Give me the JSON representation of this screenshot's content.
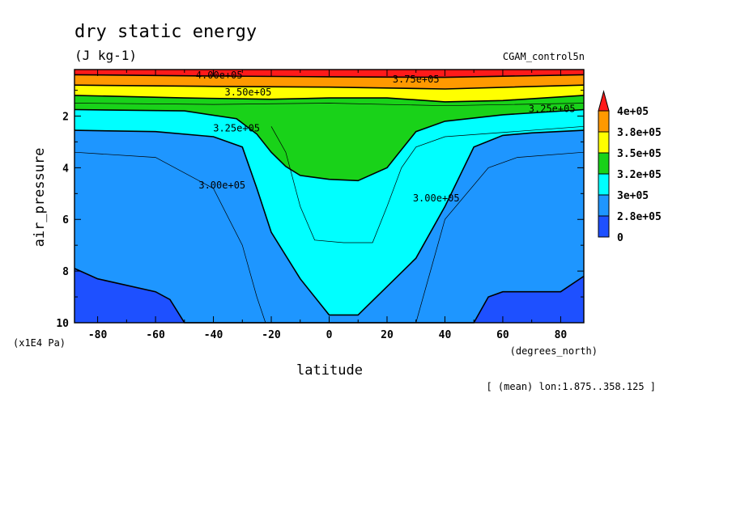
{
  "chart_data": {
    "type": "contour",
    "title": "dry static energy",
    "units_label": "(J kg-1)",
    "run_label": "CGAM_control5n",
    "xlabel": "latitude",
    "ylabel": "air_pressure",
    "x_units": "(degrees_north)",
    "y_units": "(x1E4 Pa)",
    "mean_note": "[ (mean) lon:1.875..358.125 ]",
    "xlim": [
      -88,
      88
    ],
    "ylim_reversed": [
      10,
      0.2
    ],
    "x_ticks": [
      "-80",
      "-60",
      "-40",
      "-20",
      "0",
      "20",
      "40",
      "60",
      "80"
    ],
    "x_tick_values": [
      -80,
      -60,
      -40,
      -20,
      0,
      20,
      40,
      60,
      80
    ],
    "y_ticks": [
      "2",
      "4",
      "6",
      "8",
      "10"
    ],
    "y_tick_values": [
      2,
      4,
      6,
      8,
      10
    ],
    "colorbar": {
      "labels": [
        "4e+05",
        "3.8e+05",
        "3.5e+05",
        "3.2e+05",
        "3e+05",
        "2.8e+05",
        "0"
      ],
      "colors": [
        "#ff1a1a",
        "#ff9900",
        "#ffff00",
        "#19d219",
        "#00ffff",
        "#1e96ff",
        "#1e50ff"
      ]
    },
    "contour_labels": [
      {
        "text": "4.00e+05",
        "lat": -38,
        "p": 0.55
      },
      {
        "text": "3.75e+05",
        "lat": 30,
        "p": 0.7
      },
      {
        "text": "3.50e+05",
        "lat": -28,
        "p": 1.2
      },
      {
        "text": "3.25e+05",
        "lat": 77,
        "p": 1.85
      },
      {
        "text": "3.25e+05",
        "lat": -32,
        "p": 2.6
      },
      {
        "text": "3.00e+05",
        "lat": -37,
        "p": 4.8
      },
      {
        "text": "3.00e+05",
        "lat": 37,
        "p": 5.3
      }
    ],
    "regions": [
      {
        "name": "2.8e+05-3e+05",
        "color": "#1e96ff",
        "top": [
          [
            -88,
            2.55
          ],
          [
            -60,
            2.6
          ],
          [
            -40,
            2.8
          ],
          [
            -30,
            3.2
          ],
          [
            -25,
            4.8
          ],
          [
            -20,
            6.5
          ],
          [
            -10,
            8.3
          ],
          [
            0,
            9.7
          ],
          [
            10,
            9.7
          ],
          [
            20,
            8.6
          ],
          [
            30,
            7.5
          ],
          [
            40,
            5.5
          ],
          [
            50,
            3.2
          ],
          [
            60,
            2.75
          ],
          [
            70,
            2.65
          ],
          [
            88,
            2.55
          ]
        ],
        "bottom": [
          [
            -88,
            7.9
          ],
          [
            -80,
            8.3
          ],
          [
            -60,
            8.8
          ],
          [
            -55,
            9.1
          ],
          [
            -50,
            10.0
          ],
          [
            50,
            10.0
          ],
          [
            55,
            9.0
          ],
          [
            60,
            8.8
          ],
          [
            80,
            8.8
          ],
          [
            88,
            8.2
          ]
        ]
      },
      {
        "name": "3e+05-3.2e+05",
        "color": "#00ffff",
        "top": [
          [
            -88,
            1.75
          ],
          [
            -50,
            1.8
          ],
          [
            -32,
            2.1
          ],
          [
            -25,
            2.7
          ],
          [
            -20,
            3.4
          ],
          [
            -15,
            3.95
          ],
          [
            -10,
            4.3
          ],
          [
            0,
            4.45
          ],
          [
            10,
            4.5
          ],
          [
            20,
            4.0
          ],
          [
            25,
            3.3
          ],
          [
            30,
            2.6
          ],
          [
            40,
            2.2
          ],
          [
            60,
            1.95
          ],
          [
            88,
            1.75
          ]
        ],
        "bottom": [
          [
            -88,
            2.55
          ],
          [
            -60,
            2.6
          ],
          [
            -40,
            2.8
          ],
          [
            -30,
            3.2
          ],
          [
            -25,
            4.8
          ],
          [
            -20,
            6.5
          ],
          [
            -10,
            8.3
          ],
          [
            0,
            9.7
          ],
          [
            10,
            9.7
          ],
          [
            20,
            8.6
          ],
          [
            30,
            7.5
          ],
          [
            40,
            5.5
          ],
          [
            50,
            3.2
          ],
          [
            60,
            2.75
          ],
          [
            70,
            2.65
          ],
          [
            88,
            2.55
          ]
        ]
      },
      {
        "name": "3.2e+05-3.5e+05",
        "color": "#19d219",
        "top": [
          [
            -88,
            1.2
          ],
          [
            -50,
            1.3
          ],
          [
            -20,
            1.35
          ],
          [
            0,
            1.3
          ],
          [
            20,
            1.3
          ],
          [
            40,
            1.45
          ],
          [
            60,
            1.4
          ],
          [
            88,
            1.2
          ]
        ],
        "bottom": [
          [
            -88,
            1.75
          ],
          [
            -50,
            1.8
          ],
          [
            -32,
            2.1
          ],
          [
            -25,
            2.7
          ],
          [
            -20,
            3.4
          ],
          [
            -15,
            3.95
          ],
          [
            -10,
            4.3
          ],
          [
            0,
            4.45
          ],
          [
            10,
            4.5
          ],
          [
            20,
            4.0
          ],
          [
            25,
            3.3
          ],
          [
            30,
            2.6
          ],
          [
            40,
            2.2
          ],
          [
            60,
            1.95
          ],
          [
            88,
            1.75
          ]
        ]
      },
      {
        "name": "3.5e+05-3.8e+05",
        "color": "#ffff00",
        "top": [
          [
            -88,
            0.8
          ],
          [
            -40,
            0.85
          ],
          [
            0,
            0.88
          ],
          [
            40,
            0.95
          ],
          [
            88,
            0.8
          ]
        ],
        "bottom": [
          [
            -88,
            1.2
          ],
          [
            -50,
            1.3
          ],
          [
            -20,
            1.35
          ],
          [
            0,
            1.3
          ],
          [
            20,
            1.3
          ],
          [
            40,
            1.45
          ],
          [
            60,
            1.4
          ],
          [
            88,
            1.2
          ]
        ]
      },
      {
        "name": "3.8e+05-4e+05",
        "color": "#ff9900",
        "top": [
          [
            -88,
            0.4
          ],
          [
            -40,
            0.45
          ],
          [
            0,
            0.48
          ],
          [
            40,
            0.5
          ],
          [
            88,
            0.4
          ]
        ],
        "bottom": [
          [
            -88,
            0.8
          ],
          [
            -40,
            0.85
          ],
          [
            0,
            0.88
          ],
          [
            40,
            0.95
          ],
          [
            88,
            0.8
          ]
        ]
      },
      {
        "name": "4e+05+",
        "color": "#ff1a1a",
        "top": [
          [
            -88,
            0.2
          ],
          [
            88,
            0.2
          ]
        ],
        "bottom": [
          [
            -88,
            0.4
          ],
          [
            -40,
            0.45
          ],
          [
            0,
            0.48
          ],
          [
            40,
            0.5
          ],
          [
            88,
            0.4
          ]
        ]
      }
    ],
    "extra_lines": [
      [
        [
          -88,
          3.4
        ],
        [
          -60,
          3.6
        ],
        [
          -40,
          4.8
        ],
        [
          -30,
          7.0
        ],
        [
          -25,
          9.0
        ],
        [
          -22,
          10.0
        ]
      ],
      [
        [
          -20,
          2.4
        ],
        [
          -15,
          3.4
        ],
        [
          -10,
          5.5
        ],
        [
          -5,
          6.8
        ],
        [
          5,
          6.9
        ],
        [
          15,
          6.9
        ],
        [
          20,
          5.5
        ],
        [
          25,
          4.0
        ],
        [
          30,
          3.2
        ],
        [
          40,
          2.8
        ],
        [
          88,
          2.4
        ]
      ],
      [
        [
          30,
          10.0
        ],
        [
          35,
          8.0
        ],
        [
          40,
          6.0
        ],
        [
          55,
          4.0
        ],
        [
          65,
          3.6
        ],
        [
          88,
          3.4
        ]
      ],
      [
        [
          -88,
          1.5
        ],
        [
          -40,
          1.55
        ],
        [
          0,
          1.5
        ],
        [
          40,
          1.6
        ],
        [
          88,
          1.5
        ]
      ]
    ]
  }
}
